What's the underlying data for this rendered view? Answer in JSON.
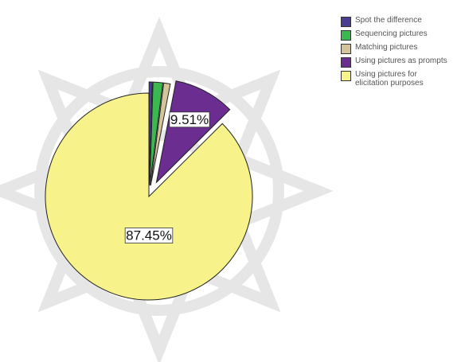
{
  "chart_data": {
    "type": "pie",
    "categories": [
      "Spot the difference",
      "Sequencing pictures",
      "Matching pictures",
      "Using pictures as prompts",
      "Using pictures for elicitation purposes"
    ],
    "values": [
      0.5,
      1.52,
      1.02,
      9.51,
      87.45
    ],
    "value_labels": [
      null,
      null,
      null,
      "9.51%",
      "87.45%"
    ],
    "colors": [
      "#4b3d8f",
      "#3cb850",
      "#d4c49a",
      "#6b2d8f",
      "#f7f38a"
    ]
  }
}
